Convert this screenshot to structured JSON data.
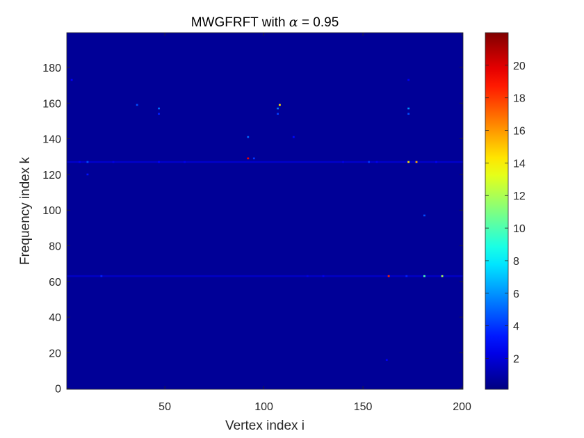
{
  "chart_data": {
    "type": "heatmap",
    "title_prefix": "MWGFRFT with ",
    "title_symbol": "α",
    "title_suffix": " = 0.95",
    "xlabel": "Vertex index i",
    "ylabel": "Frequency index k",
    "xlim": [
      0.5,
      200.5
    ],
    "ylim": [
      -0.5,
      199.5
    ],
    "x_ticks": [
      50,
      100,
      150,
      200
    ],
    "y_ticks": [
      0,
      20,
      40,
      60,
      80,
      100,
      120,
      140,
      160,
      180
    ],
    "colormap": "jet",
    "clim": [
      0.1,
      22
    ],
    "colorbar_ticks": [
      2,
      4,
      6,
      8,
      10,
      12,
      14,
      16,
      18,
      20
    ],
    "background_value": 0.6,
    "row_bands": [
      {
        "k": 63,
        "value": 1.6
      },
      {
        "k": 127,
        "value": 1.7
      }
    ],
    "peaks": [
      {
        "i": 11,
        "k": 127,
        "value": 4.5
      },
      {
        "i": 11,
        "k": 120,
        "value": 3.2
      },
      {
        "i": 18,
        "k": 63,
        "value": 3.5
      },
      {
        "i": 36,
        "k": 159,
        "value": 4.5
      },
      {
        "i": 47,
        "k": 157,
        "value": 5.2
      },
      {
        "i": 47,
        "k": 154,
        "value": 3.5
      },
      {
        "i": 47,
        "k": 127,
        "value": 2.8
      },
      {
        "i": 92,
        "k": 141,
        "value": 5.0
      },
      {
        "i": 92,
        "k": 129,
        "value": 19.5
      },
      {
        "i": 95,
        "k": 129,
        "value": 4.0
      },
      {
        "i": 108,
        "k": 159,
        "value": 14.5
      },
      {
        "i": 107,
        "k": 157,
        "value": 5.5
      },
      {
        "i": 107,
        "k": 154,
        "value": 4.2
      },
      {
        "i": 115,
        "k": 141,
        "value": 3.0
      },
      {
        "i": 153,
        "k": 127,
        "value": 4.0
      },
      {
        "i": 163,
        "k": 63,
        "value": 18.5
      },
      {
        "i": 173,
        "k": 157,
        "value": 6.0
      },
      {
        "i": 173,
        "k": 154,
        "value": 4.5
      },
      {
        "i": 173,
        "k": 127,
        "value": 14.2
      },
      {
        "i": 177,
        "k": 127,
        "value": 15.5
      },
      {
        "i": 172,
        "k": 63,
        "value": 3.5
      },
      {
        "i": 181,
        "k": 97,
        "value": 4.5
      },
      {
        "i": 181,
        "k": 63,
        "value": 10.0
      },
      {
        "i": 190,
        "k": 63,
        "value": 12.0
      },
      {
        "i": 173,
        "k": 173,
        "value": 2.6
      },
      {
        "i": 3,
        "k": 173,
        "value": 2.8
      },
      {
        "i": 162,
        "k": 16,
        "value": 2.6
      },
      {
        "i": 130,
        "k": 63,
        "value": 2.5
      },
      {
        "i": 60,
        "k": 127,
        "value": 2.4
      },
      {
        "i": 24,
        "k": 127,
        "value": 2.3
      },
      {
        "i": 140,
        "k": 127,
        "value": 2.3
      },
      {
        "i": 187,
        "k": 127,
        "value": 2.6
      },
      {
        "i": 157,
        "k": 127,
        "value": 2.5
      },
      {
        "i": 122,
        "k": 63,
        "value": 2.2
      },
      {
        "i": 7,
        "k": 127,
        "value": 2.4
      }
    ]
  }
}
